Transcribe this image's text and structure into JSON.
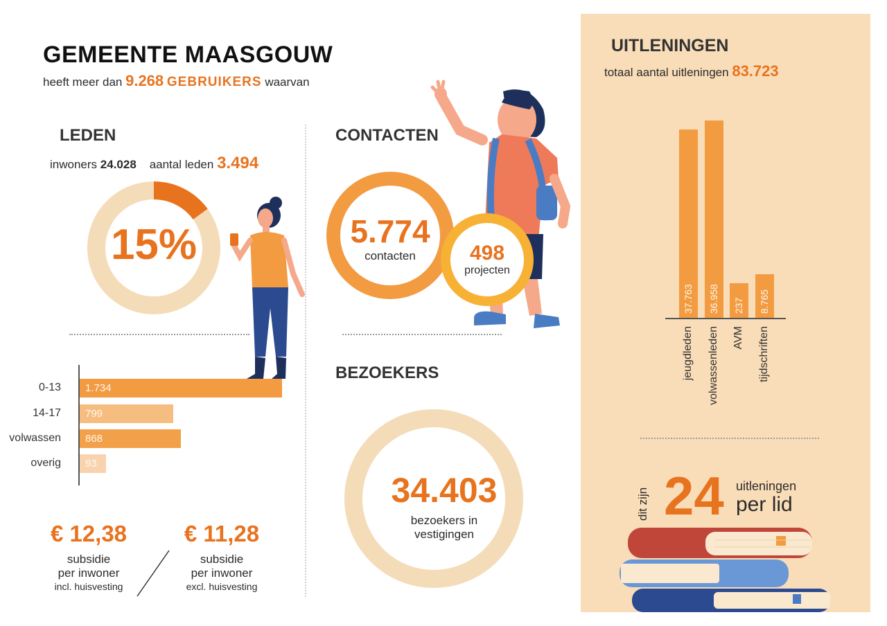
{
  "header": {
    "title": "GEMEENTE MAASGOUW",
    "sub_pre": "heeft meer dan",
    "sub_value": "9.268",
    "sub_strong": "GEBRUIKERS",
    "sub_post": "waarvan"
  },
  "leden": {
    "heading": "LEDEN",
    "inwoners_label": "inwoners",
    "inwoners_value": "24.028",
    "aantal_label": "aantal leden",
    "aantal_value": "3.494",
    "percent_label": "15%",
    "percent_fraction": 0.15
  },
  "contacten": {
    "heading": "CONTACTEN",
    "contacts_value": "5.774",
    "contacts_label": "contacten",
    "projects_value": "498",
    "projects_label": "projecten"
  },
  "bezoekers": {
    "heading": "BEZOEKERS",
    "value": "34.403",
    "label_line1": "bezoekers in",
    "label_line2": "vestigingen"
  },
  "subsidie": {
    "left": {
      "value": "€ 12,38",
      "line1": "subsidie",
      "line2": "per inwoner",
      "line3": "incl. huisvesting"
    },
    "right": {
      "value": "€ 11,28",
      "line1": "subsidie",
      "line2": "per inwoner",
      "line3": "excl. huisvesting"
    }
  },
  "uitleningen": {
    "heading": "UITLENINGEN",
    "total_label": "totaal aantal uitleningen",
    "total_value": "83.723",
    "per_lid_prefix": "dit zijn",
    "per_lid_value": "24",
    "per_lid_line1": "uitleningen",
    "per_lid_line2": "per lid"
  },
  "colors": {
    "orange": "#e8731f",
    "bar_orange": "#f29b41",
    "light_orange": "#f5b26b",
    "pale_orange": "#f9d3b0",
    "ring_pale": "#f5dcb9",
    "panel_bg": "#f9ddb8",
    "yellow_orange": "#f7b134",
    "book_red": "#c0463a",
    "book_blue": "#4a7cc4",
    "book_navy": "#2c4a8f"
  },
  "chart_data": [
    {
      "type": "bar",
      "orientation": "horizontal",
      "categories": [
        "0-13",
        "14-17",
        "volwassen",
        "overig"
      ],
      "values": [
        1734,
        799,
        868,
        93
      ],
      "value_labels": [
        "1.734",
        "799",
        "868",
        "93"
      ],
      "title": "",
      "xlabel": "",
      "ylabel": ""
    },
    {
      "type": "bar",
      "orientation": "vertical",
      "categories": [
        "jeugdleden",
        "volwassenleden",
        "AVM",
        "tijdschriften"
      ],
      "values": [
        37763,
        36958,
        237,
        8765
      ],
      "value_labels": [
        "37.763",
        "36.958",
        "237",
        "8.765"
      ],
      "title": "",
      "xlabel": "",
      "ylabel": ""
    }
  ]
}
